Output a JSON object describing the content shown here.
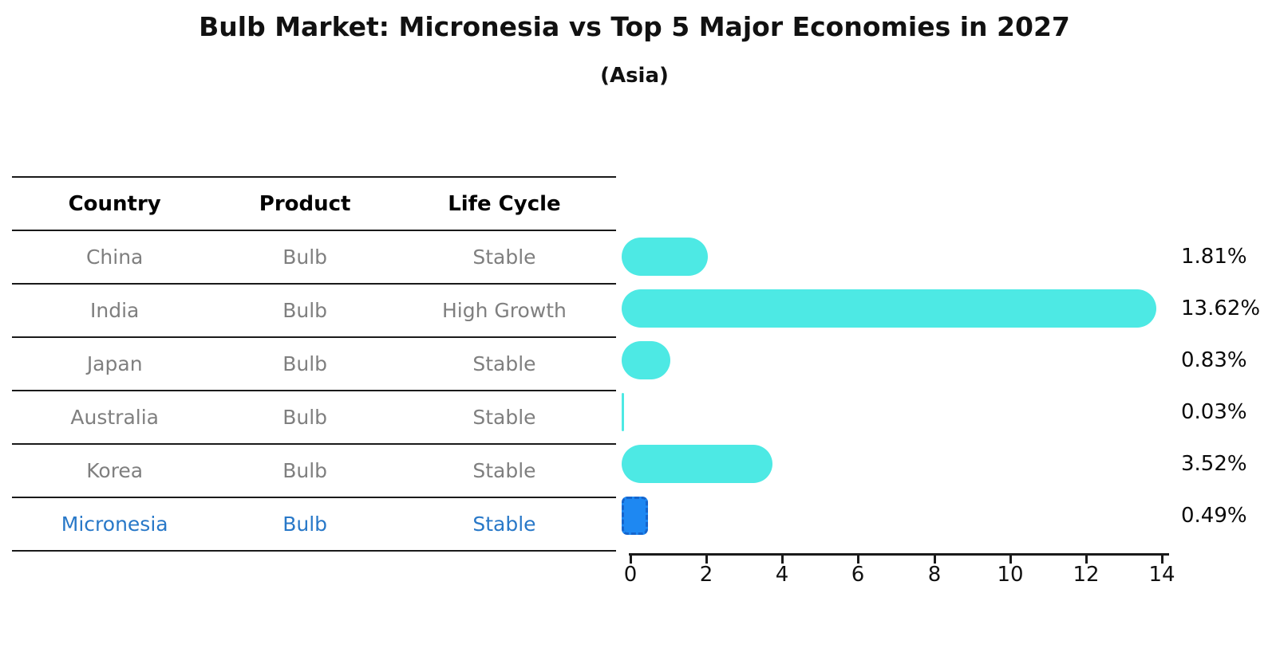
{
  "title": "Bulb Market: Micronesia vs Top 5 Major Economies in 2027",
  "subtitle": "(Asia)",
  "table": {
    "headers": [
      "Country",
      "Product",
      "Life Cycle"
    ],
    "rows": [
      {
        "country": "China",
        "product": "Bulb",
        "life_cycle": "Stable"
      },
      {
        "country": "India",
        "product": "Bulb",
        "life_cycle": "High Growth"
      },
      {
        "country": "Japan",
        "product": "Bulb",
        "life_cycle": "Stable"
      },
      {
        "country": "Australia",
        "product": "Bulb",
        "life_cycle": "Stable"
      },
      {
        "country": "Korea",
        "product": "Bulb",
        "life_cycle": "Stable"
      },
      {
        "country": "Micronesia",
        "product": "Bulb",
        "life_cycle": "Stable"
      }
    ],
    "highlight_row": "Micronesia"
  },
  "chart_data": {
    "type": "bar",
    "orientation": "horizontal",
    "categories": [
      "China",
      "India",
      "Japan",
      "Australia",
      "Korea",
      "Micronesia"
    ],
    "values": [
      1.81,
      13.62,
      0.83,
      0.03,
      3.52,
      0.49
    ],
    "value_labels": [
      "1.81%",
      "13.62%",
      "0.83%",
      "0.03%",
      "3.52%",
      "0.49%"
    ],
    "xlim": [
      0,
      14
    ],
    "x_ticks": [
      "0",
      "2",
      "4",
      "6",
      "8",
      "10",
      "12",
      "14"
    ],
    "grid": "off",
    "legend": "none",
    "highlight_category": "Micronesia",
    "colors": {
      "bar": "#4DE9E4",
      "highlight_bar": "#1E88F2",
      "highlight_bar_border": "#1565CD",
      "highlight_text": "#2878C8",
      "table_text": "#7f7f7f",
      "axis": "#1a1a1a"
    }
  }
}
